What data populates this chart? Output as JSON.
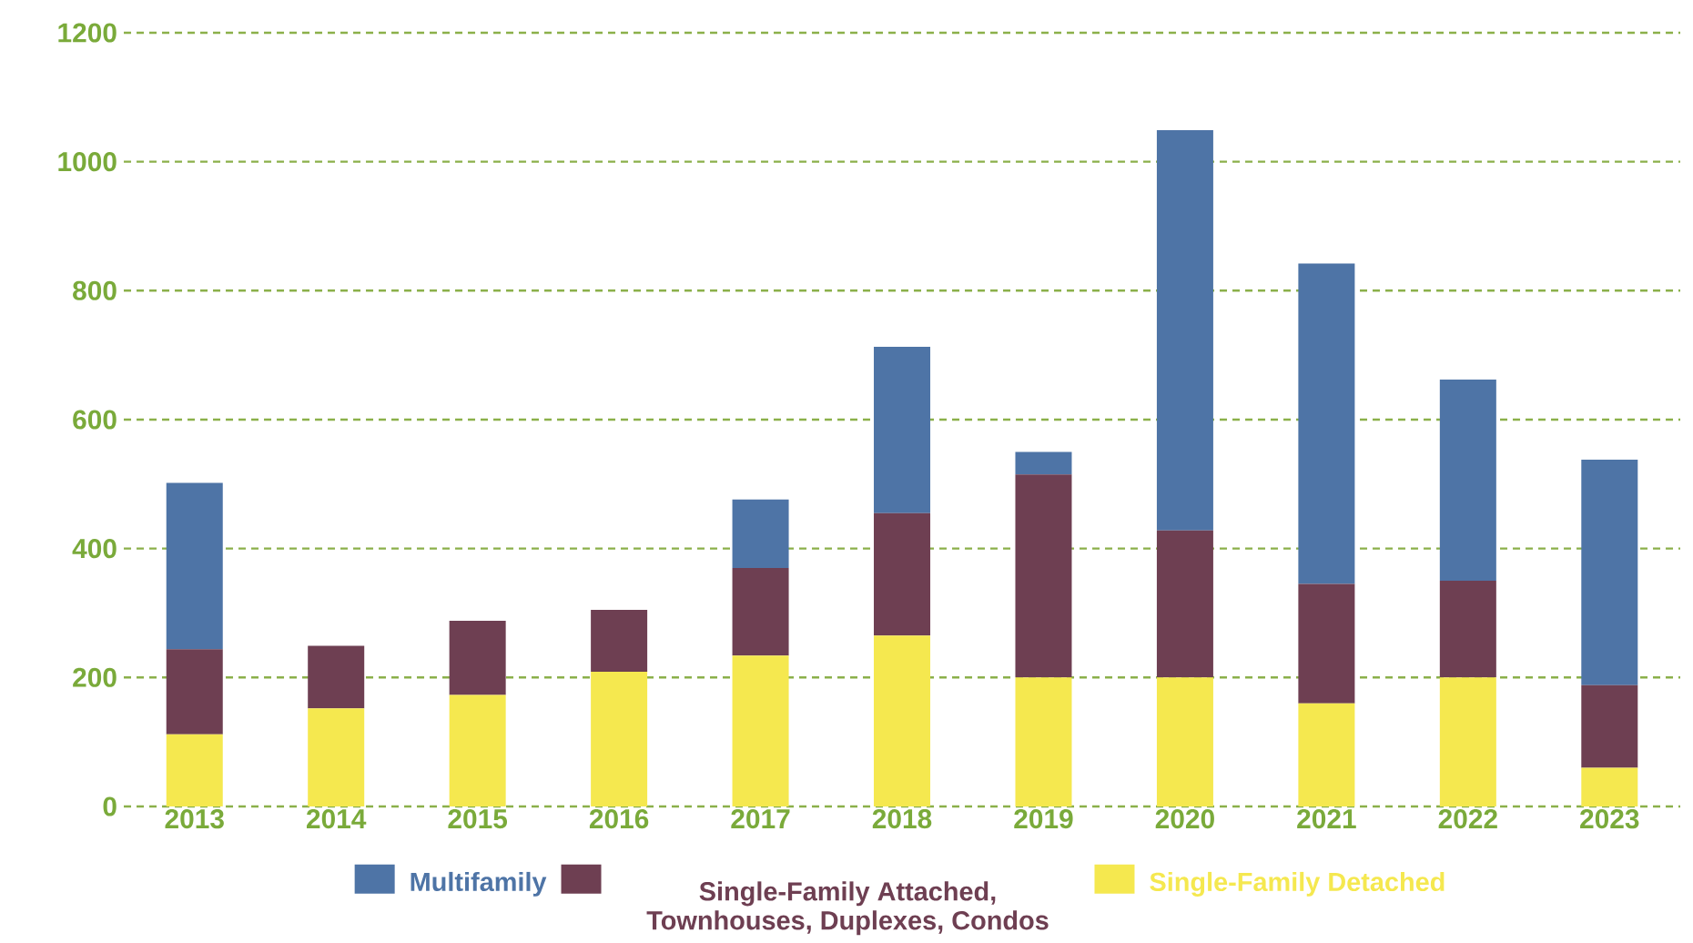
{
  "chart_data": {
    "type": "bar",
    "stacked": true,
    "categories": [
      "2013",
      "2014",
      "2015",
      "2016",
      "2017",
      "2018",
      "2019",
      "2020",
      "2021",
      "2022",
      "2023"
    ],
    "series": [
      {
        "name": "Single-Family Detached",
        "color": "#f5e84f",
        "values": [
          112,
          152,
          173,
          209,
          234,
          265,
          200,
          200,
          160,
          200,
          60
        ]
      },
      {
        "name": "Single-Family Attached, Townhouses, Duplexes, Condos",
        "color": "#6e3f52",
        "values": [
          132,
          97,
          115,
          96,
          136,
          190,
          315,
          228,
          185,
          150,
          128
        ]
      },
      {
        "name": "Multifamily",
        "color": "#4e74a6",
        "values": [
          258,
          0,
          0,
          0,
          106,
          258,
          35,
          621,
          497,
          312,
          350
        ]
      }
    ],
    "ylim": [
      0,
      1200
    ],
    "yticks": [
      0,
      200,
      400,
      600,
      800,
      1000,
      1200
    ],
    "grid": "y",
    "legend": "bottom"
  }
}
